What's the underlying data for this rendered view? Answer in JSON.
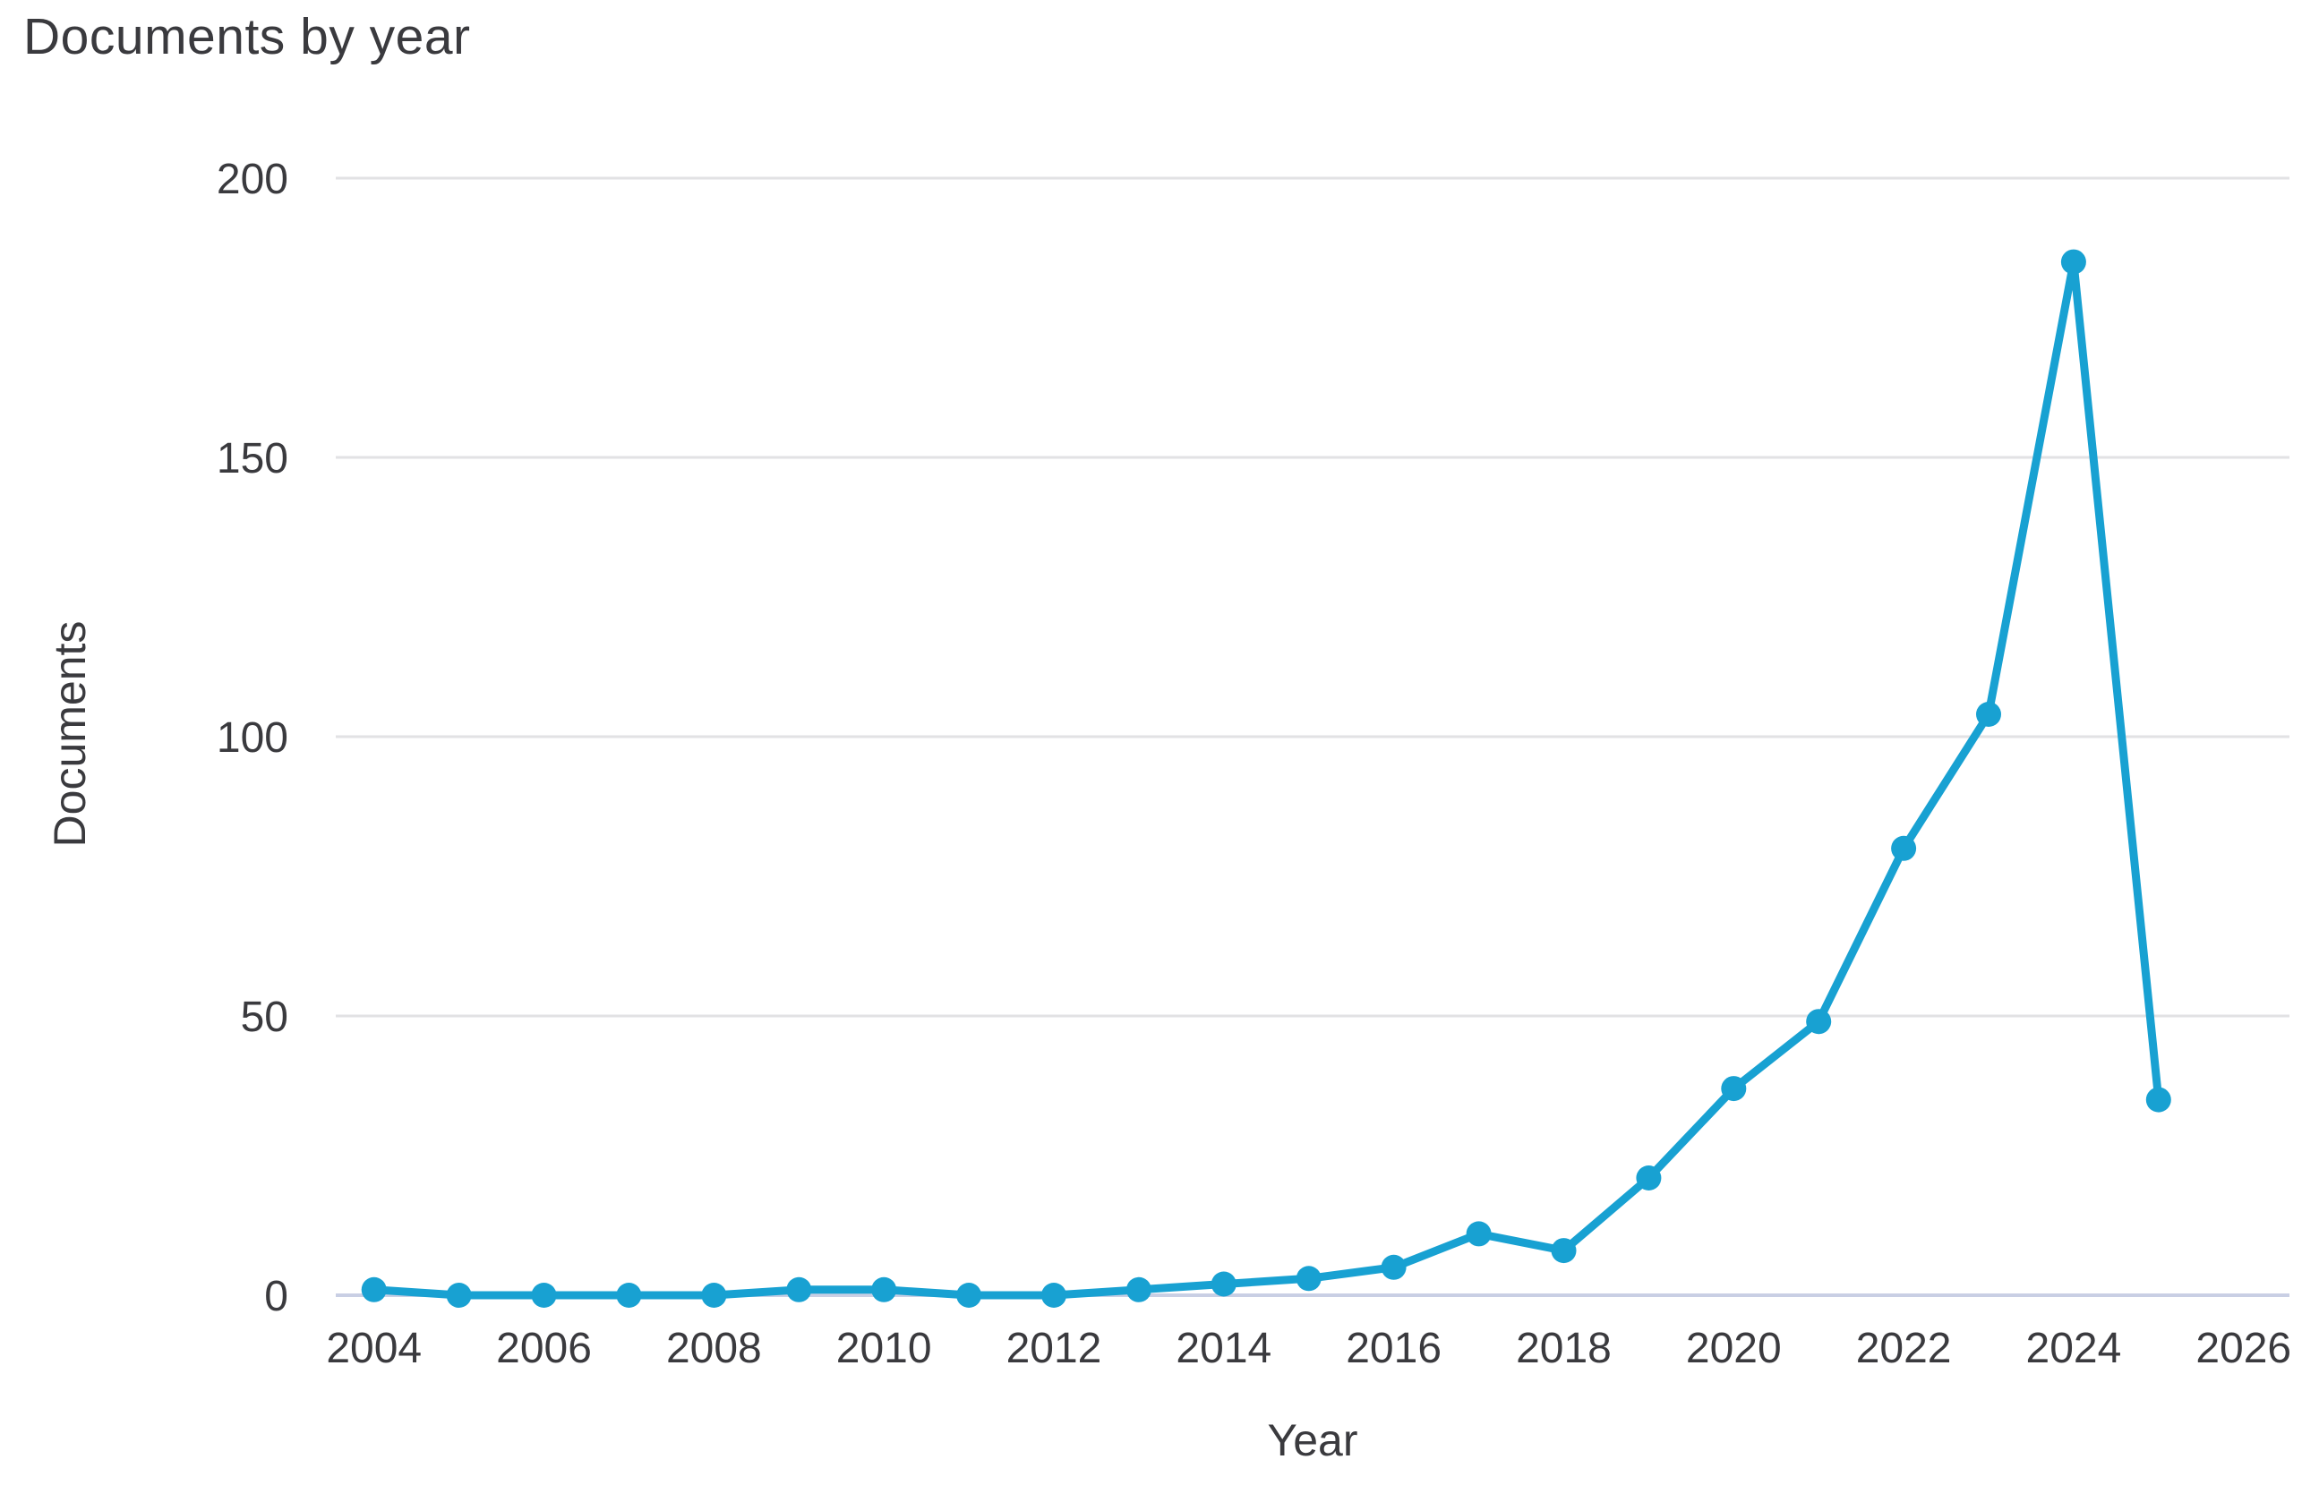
{
  "page": {
    "background": "#ffffff"
  },
  "chart": {
    "title": "Documents by year",
    "x_axis_label": "Year",
    "y_axis_label": "Documents"
  },
  "chart_data": {
    "type": "line",
    "title": "Documents by year",
    "xlabel": "Year",
    "ylabel": "Documents",
    "series": [
      {
        "name": "Documents",
        "x": [
          2004,
          2005,
          2006,
          2007,
          2008,
          2009,
          2010,
          2011,
          2012,
          2013,
          2014,
          2015,
          2016,
          2017,
          2018,
          2019,
          2020,
          2021,
          2022,
          2023,
          2024,
          2025
        ],
        "values": [
          1,
          0,
          0,
          0,
          0,
          1,
          1,
          0,
          0,
          1,
          2,
          3,
          5,
          11,
          8,
          21,
          37,
          49,
          80,
          104,
          185,
          35
        ]
      }
    ],
    "x_ticks": [
      2004,
      2006,
      2008,
      2010,
      2012,
      2014,
      2016,
      2018,
      2020,
      2022,
      2024,
      2026
    ],
    "y_ticks": [
      0,
      50,
      100,
      150,
      200
    ],
    "xlim": [
      2003.55,
      2026.54
    ],
    "ylim": [
      0,
      200
    ],
    "grid": "horizontal-only",
    "legend": "none",
    "line_color": "#18a1d2",
    "marker_color": "#18a1d2",
    "grid_color": "#e2e2e4",
    "baseline_color": "#c9cfe4",
    "text_color": "#3a3a3e"
  }
}
